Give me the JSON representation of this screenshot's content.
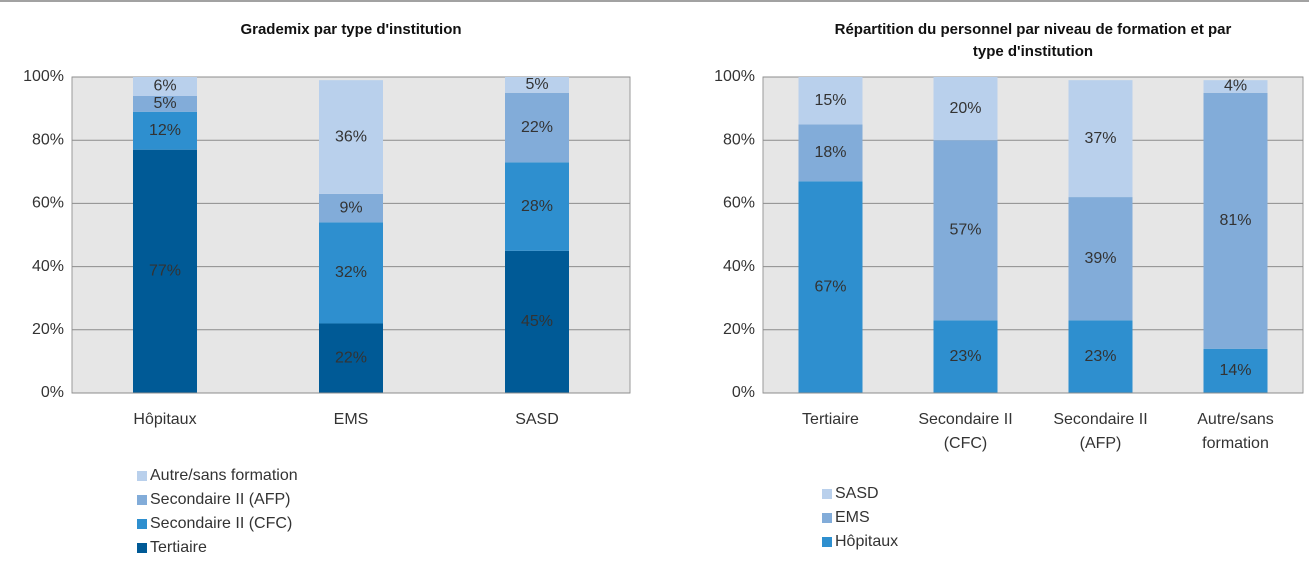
{
  "chart_data": [
    {
      "type": "stacked_bar",
      "title": "Grademix par type d'institution",
      "categories": [
        "Hôpitaux",
        "EMS",
        "SASD"
      ],
      "series": [
        {
          "name": "Tertiaire",
          "color": "#005a96",
          "values": [
            77,
            22,
            45
          ],
          "value_labels": [
            "77%",
            "22%",
            "45%"
          ]
        },
        {
          "name": "Secondaire II (CFC)",
          "color": "#2e8fcf",
          "values": [
            12,
            32,
            28
          ],
          "value_labels": [
            "12%",
            "32%",
            "28%"
          ]
        },
        {
          "name": "Secondaire II (AFP)",
          "color": "#82acd9",
          "values": [
            5,
            9,
            22
          ],
          "value_labels": [
            "5%",
            "9%",
            "22%"
          ]
        },
        {
          "name": "Autre/sans formation",
          "color": "#b9d0ec",
          "values": [
            6,
            36,
            5
          ],
          "value_labels": [
            "6%",
            "36%",
            "5%"
          ]
        }
      ],
      "ylim": [
        0,
        100
      ],
      "yticks": [
        {
          "value": 0,
          "label": "0%"
        },
        {
          "value": 20,
          "label": "20%"
        },
        {
          "value": 40,
          "label": "40%"
        },
        {
          "value": 60,
          "label": "60%"
        },
        {
          "value": 80,
          "label": "80%"
        },
        {
          "value": 100,
          "label": "100%"
        }
      ],
      "grid": true
    },
    {
      "type": "stacked_bar",
      "title": "Répartition du personnel par niveau de formation et par type d'institution",
      "categories": [
        "Tertiaire",
        "Secondaire II (CFC)",
        "Secondaire II (AFP)",
        "Autre/sans formation"
      ],
      "series": [
        {
          "name": "Hôpitaux",
          "color": "#2e8fcf",
          "values": [
            67,
            23,
            23,
            14
          ],
          "value_labels": [
            "67%",
            "23%",
            "23%",
            "14%"
          ]
        },
        {
          "name": "EMS",
          "color": "#82acd9",
          "values": [
            18,
            57,
            39,
            81
          ],
          "value_labels": [
            "18%",
            "57%",
            "39%",
            "81%"
          ]
        },
        {
          "name": "SASD",
          "color": "#b9d0ec",
          "values": [
            15,
            20,
            37,
            4
          ],
          "value_labels": [
            "15%",
            "20%",
            "37%",
            "4%"
          ]
        }
      ],
      "ylim": [
        0,
        100
      ],
      "yticks": [
        {
          "value": 0,
          "label": "0%"
        },
        {
          "value": 20,
          "label": "20%"
        },
        {
          "value": 40,
          "label": "40%"
        },
        {
          "value": 60,
          "label": "60%"
        },
        {
          "value": 80,
          "label": "80%"
        },
        {
          "value": 100,
          "label": "100%"
        }
      ],
      "grid": true
    }
  ]
}
